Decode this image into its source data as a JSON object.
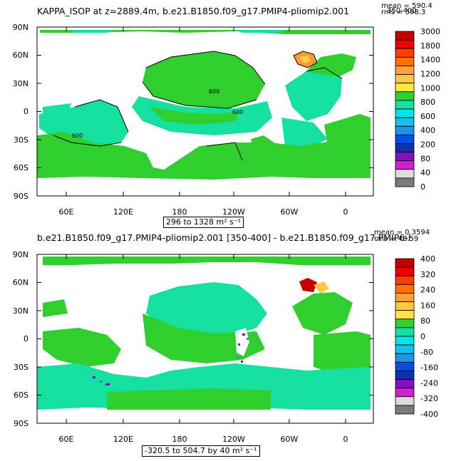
{
  "top": {
    "title": "KAPPA_ISOP at z=2889.4m, b.e21.B1850.f09_g17.PMIP4-pliomip2.001",
    "stats_line1": "mean = 590.4",
    "stats_line2": "rms = 598.3",
    "subrange": "350-400",
    "range_text": "296 to 1328 m² s⁻¹",
    "contour_labels": [
      "600",
      "600",
      "600"
    ],
    "colorbar": {
      "labels": [
        "3000",
        "1800",
        "1400",
        "1200",
        "1000",
        "800",
        "600",
        "400",
        "200",
        "80",
        "40",
        "0"
      ],
      "colors": [
        "#c40000",
        "#ee0000",
        "#ff3c00",
        "#ff7000",
        "#ffa040",
        "#ffc840",
        "#ffe640",
        "#31ce2f",
        "#16e0a0",
        "#00e6e6",
        "#18c0f0",
        "#1896ec",
        "#0050e6",
        "#1030b0",
        "#8010c0",
        "#d020d0",
        "#dcdcdc",
        "#7a7a7a"
      ]
    }
  },
  "bottom": {
    "title": "b.e21.B1850.f09_g17.PMIP4-pliomip2.001 [350-400] - b.e21.B1850.f09_g17.PMIP6-l",
    "stats_line1": "mean = 0.3594",
    "stats_line2": "rms = 48.59",
    "range_text": "-320.5 to 504.7 by 40 m² s⁻¹",
    "colorbar": {
      "labels": [
        "400",
        "320",
        "240",
        "160",
        "80",
        "0",
        "-80",
        "-160",
        "-240",
        "-320",
        "-400"
      ],
      "colors": [
        "#c40000",
        "#ee0000",
        "#ff3c00",
        "#ff7000",
        "#ffa040",
        "#ffc840",
        "#ffe640",
        "#31ce2f",
        "#16e0a0",
        "#00e6e6",
        "#18c0f0",
        "#1896ec",
        "#0050e6",
        "#1030b0",
        "#8010c0",
        "#d020d0",
        "#dcdcdc",
        "#7a7a7a"
      ]
    }
  },
  "axes": {
    "lat_labels": [
      "90N",
      "60N",
      "30N",
      "0",
      "30S",
      "60S",
      "90S"
    ],
    "lon_labels": [
      "60E",
      "120E",
      "180",
      "120W",
      "60W",
      "0"
    ]
  }
}
